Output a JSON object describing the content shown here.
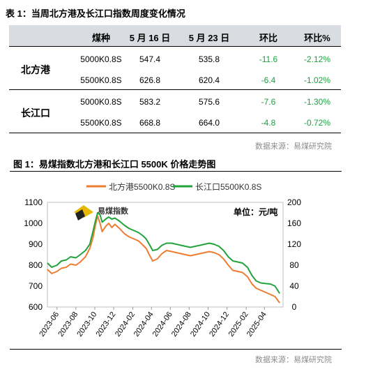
{
  "table": {
    "title": "表 1：当周北方港及长江口指数周度变化情况",
    "headers": [
      "煤种",
      "5 月 16 日",
      "5 月 23 日",
      "环比",
      "环比%"
    ],
    "groups": [
      {
        "name": "北方港",
        "rows": [
          {
            "coal": "5000K0.8S",
            "may16": "547.4",
            "may23": "535.8",
            "chg": "-11.6",
            "pct": "-2.12%"
          },
          {
            "coal": "5500K0.8S",
            "may16": "626.8",
            "may23": "620.4",
            "chg": "-6.4",
            "pct": "-1.02%"
          }
        ]
      },
      {
        "name": "长江口",
        "rows": [
          {
            "coal": "5000K0.8S",
            "may16": "583.2",
            "may23": "575.6",
            "chg": "-7.6",
            "pct": "-1.30%"
          },
          {
            "coal": "5500K0.8S",
            "may16": "668.8",
            "may23": "664.0",
            "chg": "-4.8",
            "pct": "-0.72%"
          }
        ]
      }
    ],
    "source": "数据来源：易煤研究院"
  },
  "figure": {
    "title": "图 1：易煤指数北方港和长江口 5500K 价格走势图",
    "source": "数据来源：易煤研究院",
    "logo_text": "易煤指数",
    "unit_label": "单位：元/吨"
  },
  "colors": {
    "north": "#ed7d31",
    "yangtze": "#21a33c",
    "header_bg": "#d9dde1",
    "change_text": "#17a43f"
  },
  "chart_data": {
    "type": "line",
    "legend_position": "top",
    "grid": false,
    "x_labels": [
      "2023-06",
      "2023-08",
      "2023-10",
      "2023-12",
      "2024-02",
      "2024-04",
      "2024-06",
      "2024-08",
      "2024-10",
      "2024-12",
      "2025-02",
      "2025-04"
    ],
    "x_range": [
      "2023-05",
      "2025-05"
    ],
    "y_left": {
      "min": 600,
      "max": 1100,
      "ticks": [
        600,
        700,
        800,
        900,
        1000,
        1100
      ]
    },
    "y_right": {
      "min": 0,
      "max": 200,
      "ticks": [
        0,
        40,
        80,
        120,
        160,
        200
      ]
    },
    "series": [
      {
        "name": "北方港5500K0.8S",
        "axis": "left",
        "color": "#ed7d31",
        "points": [
          [
            "2023-05-01",
            780
          ],
          [
            "2023-05-15",
            760
          ],
          [
            "2023-06-01",
            770
          ],
          [
            "2023-06-15",
            785
          ],
          [
            "2023-07-01",
            790
          ],
          [
            "2023-07-15",
            805
          ],
          [
            "2023-08-01",
            800
          ],
          [
            "2023-08-15",
            815
          ],
          [
            "2023-09-01",
            840
          ],
          [
            "2023-09-15",
            880
          ],
          [
            "2023-09-25",
            930
          ],
          [
            "2023-10-03",
            990
          ],
          [
            "2023-10-10",
            1035
          ],
          [
            "2023-10-18",
            1000
          ],
          [
            "2023-10-25",
            960
          ],
          [
            "2023-11-05",
            985
          ],
          [
            "2023-11-15",
            1000
          ],
          [
            "2023-11-25",
            980
          ],
          [
            "2023-12-05",
            995
          ],
          [
            "2023-12-20",
            975
          ],
          [
            "2024-01-05",
            950
          ],
          [
            "2024-01-20",
            935
          ],
          [
            "2024-02-05",
            925
          ],
          [
            "2024-02-20",
            915
          ],
          [
            "2024-03-05",
            895
          ],
          [
            "2024-03-15",
            880
          ],
          [
            "2024-03-25",
            850
          ],
          [
            "2024-04-05",
            820
          ],
          [
            "2024-04-20",
            830
          ],
          [
            "2024-05-05",
            855
          ],
          [
            "2024-05-20",
            870
          ],
          [
            "2024-06-05",
            865
          ],
          [
            "2024-06-20",
            860
          ],
          [
            "2024-07-05",
            855
          ],
          [
            "2024-07-20",
            850
          ],
          [
            "2024-08-05",
            845
          ],
          [
            "2024-08-20",
            850
          ],
          [
            "2024-09-05",
            855
          ],
          [
            "2024-09-20",
            860
          ],
          [
            "2024-10-05",
            865
          ],
          [
            "2024-10-20",
            860
          ],
          [
            "2024-11-05",
            850
          ],
          [
            "2024-11-20",
            830
          ],
          [
            "2024-12-05",
            800
          ],
          [
            "2024-12-20",
            775
          ],
          [
            "2025-01-05",
            770
          ],
          [
            "2025-01-20",
            765
          ],
          [
            "2025-02-05",
            745
          ],
          [
            "2025-02-20",
            710
          ],
          [
            "2025-03-05",
            690
          ],
          [
            "2025-03-20",
            680
          ],
          [
            "2025-04-05",
            670
          ],
          [
            "2025-04-20",
            660
          ],
          [
            "2025-05-05",
            650
          ],
          [
            "2025-05-20",
            620
          ]
        ]
      },
      {
        "name": "长江口5500K0.8S",
        "axis": "left",
        "color": "#21a33c",
        "points": [
          [
            "2023-05-01",
            810
          ],
          [
            "2023-05-15",
            790
          ],
          [
            "2023-06-01",
            800
          ],
          [
            "2023-06-15",
            820
          ],
          [
            "2023-07-01",
            825
          ],
          [
            "2023-07-15",
            840
          ],
          [
            "2023-08-01",
            835
          ],
          [
            "2023-08-15",
            850
          ],
          [
            "2023-09-01",
            870
          ],
          [
            "2023-09-15",
            900
          ],
          [
            "2023-09-25",
            960
          ],
          [
            "2023-10-03",
            1010
          ],
          [
            "2023-10-10",
            1050
          ],
          [
            "2023-10-18",
            1040
          ],
          [
            "2023-10-25",
            1005
          ],
          [
            "2023-11-05",
            1020
          ],
          [
            "2023-11-15",
            1030
          ],
          [
            "2023-11-25",
            1020
          ],
          [
            "2023-12-05",
            1025
          ],
          [
            "2023-12-20",
            1010
          ],
          [
            "2024-01-05",
            990
          ],
          [
            "2024-01-20",
            975
          ],
          [
            "2024-02-05",
            965
          ],
          [
            "2024-02-20",
            955
          ],
          [
            "2024-03-05",
            940
          ],
          [
            "2024-03-15",
            925
          ],
          [
            "2024-03-25",
            900
          ],
          [
            "2024-04-05",
            870
          ],
          [
            "2024-04-20",
            875
          ],
          [
            "2024-05-05",
            895
          ],
          [
            "2024-05-20",
            905
          ],
          [
            "2024-06-05",
            905
          ],
          [
            "2024-06-20",
            900
          ],
          [
            "2024-07-05",
            895
          ],
          [
            "2024-07-20",
            890
          ],
          [
            "2024-08-05",
            885
          ],
          [
            "2024-08-20",
            890
          ],
          [
            "2024-09-05",
            895
          ],
          [
            "2024-09-20",
            900
          ],
          [
            "2024-10-05",
            905
          ],
          [
            "2024-10-20",
            900
          ],
          [
            "2024-11-05",
            890
          ],
          [
            "2024-11-20",
            870
          ],
          [
            "2024-12-05",
            840
          ],
          [
            "2024-12-20",
            820
          ],
          [
            "2025-01-05",
            815
          ],
          [
            "2025-01-20",
            810
          ],
          [
            "2025-02-05",
            790
          ],
          [
            "2025-02-20",
            750
          ],
          [
            "2025-03-05",
            725
          ],
          [
            "2025-03-20",
            715
          ],
          [
            "2025-04-05",
            712
          ],
          [
            "2025-04-20",
            710
          ],
          [
            "2025-05-05",
            700
          ],
          [
            "2025-05-20",
            665
          ]
        ]
      }
    ]
  }
}
